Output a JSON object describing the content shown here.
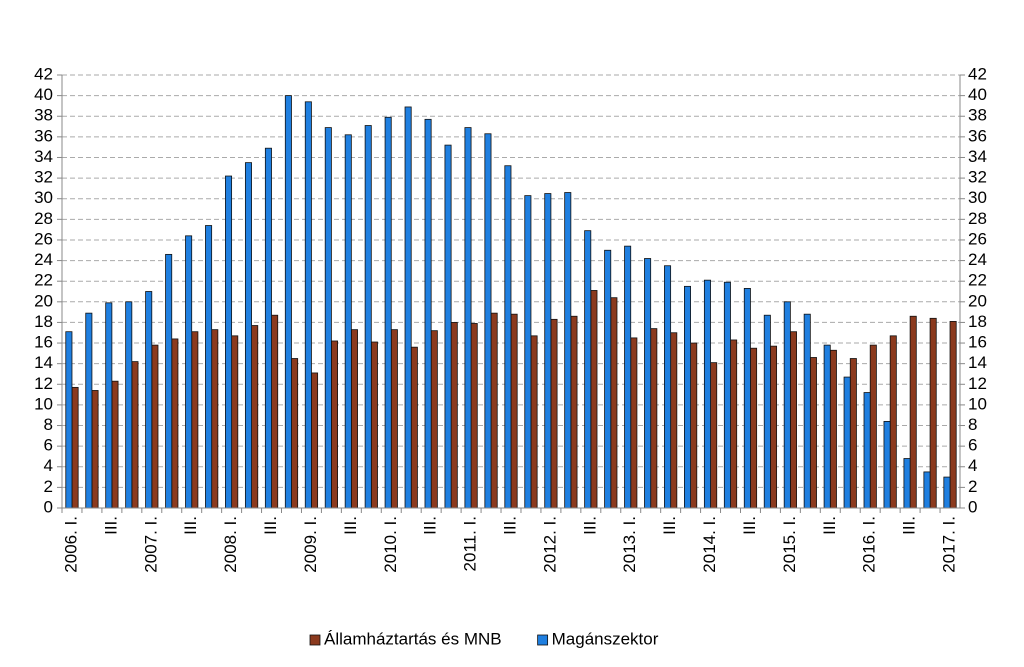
{
  "chart_data": {
    "type": "bar",
    "categories": [
      "2006. I.",
      null,
      "III.",
      null,
      "2007. I.",
      null,
      "III.",
      null,
      "2008. I.",
      null,
      "III.",
      null,
      "2009. I.",
      null,
      "III.",
      null,
      "2010. I.",
      null,
      "III.",
      null,
      "2011. I.",
      null,
      "III.",
      null,
      "2012. I.",
      null,
      "III.",
      null,
      "2013. I.",
      null,
      "III.",
      null,
      "2014. I.",
      null,
      "III.",
      null,
      "2015. I.",
      null,
      "III.",
      null,
      "2016. I.",
      null,
      "III.",
      null,
      "2017. I."
    ],
    "series": [
      {
        "name": "Államháztartás és MNB",
        "color": "#8b3a1e",
        "values": [
          11.7,
          11.4,
          12.3,
          14.2,
          15.8,
          16.4,
          17.1,
          17.3,
          16.7,
          17.7,
          18.7,
          14.5,
          13.1,
          16.2,
          17.3,
          16.1,
          17.3,
          15.6,
          17.2,
          18.0,
          17.9,
          18.9,
          18.8,
          16.7,
          18.3,
          18.6,
          21.1,
          20.4,
          16.5,
          17.4,
          17.0,
          16.0,
          14.1,
          16.3,
          15.5,
          15.7,
          17.1,
          14.6,
          15.3,
          14.5,
          15.8,
          16.7,
          18.6,
          18.4,
          18.1
        ]
      },
      {
        "name": "Magánszektor",
        "color": "#1f7fe0",
        "values": [
          17.1,
          18.9,
          19.9,
          20.0,
          21.0,
          24.6,
          26.4,
          27.4,
          32.2,
          33.5,
          34.9,
          40.0,
          39.4,
          36.9,
          36.2,
          37.1,
          37.9,
          38.9,
          37.7,
          35.2,
          36.9,
          36.3,
          33.2,
          30.3,
          30.5,
          30.6,
          26.9,
          25.0,
          25.4,
          24.2,
          23.5,
          21.5,
          22.1,
          21.9,
          21.3,
          18.7,
          20.0,
          18.8,
          15.8,
          12.7,
          11.2,
          8.4,
          4.8,
          3.5,
          3.0
        ]
      }
    ],
    "ylim": [
      0,
      42
    ],
    "yticks": [
      0,
      2,
      4,
      6,
      8,
      10,
      12,
      14,
      16,
      18,
      20,
      22,
      24,
      26,
      28,
      30,
      32,
      34,
      36,
      38,
      40,
      42
    ],
    "y2lim": [
      0,
      42
    ],
    "y2ticks": [
      0,
      2,
      4,
      6,
      8,
      10,
      12,
      14,
      16,
      18,
      20,
      22,
      24,
      26,
      28,
      30,
      32,
      34,
      36,
      38,
      40,
      42
    ],
    "grid": true,
    "legend": "bottom"
  }
}
